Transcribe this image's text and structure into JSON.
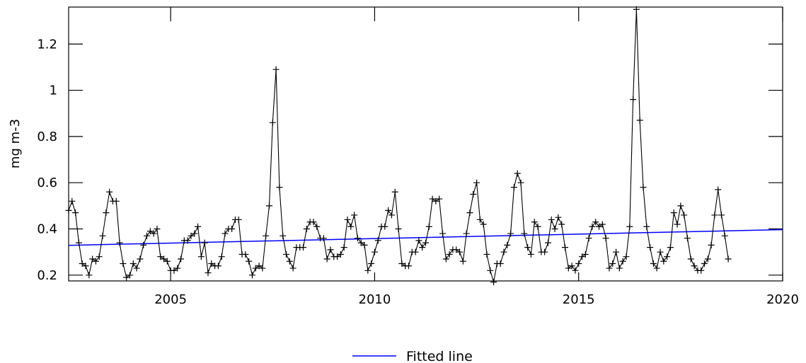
{
  "chart_data": {
    "type": "line",
    "title": "",
    "xlabel": "",
    "ylabel": "mg m-3",
    "xlim": [
      2002.5,
      2020
    ],
    "ylim": [
      0.175,
      1.36
    ],
    "x_ticks": [
      2005,
      2010,
      2015,
      2020
    ],
    "y_ticks": [
      0.2,
      0.4,
      0.6,
      0.8,
      1,
      1.2
    ],
    "x_tick_labels": [
      "2005",
      "2010",
      "2015",
      "2020"
    ],
    "y_tick_labels": [
      "0.2",
      "0.4",
      "0.6",
      "0.8",
      "1",
      "1.2"
    ],
    "grid": false,
    "legend": {
      "position": "bottom-center",
      "entries": [
        "Fitted line"
      ]
    },
    "series": [
      {
        "marker": "plus",
        "color": "#000000",
        "x_start": 2002.5,
        "x_step": 0.0833333,
        "values": [
          0.48,
          0.52,
          0.47,
          0.34,
          0.25,
          0.24,
          0.2,
          0.27,
          0.26,
          0.28,
          0.37,
          0.47,
          0.56,
          0.52,
          0.52,
          0.34,
          0.25,
          0.19,
          0.2,
          0.25,
          0.23,
          0.27,
          0.33,
          0.37,
          0.39,
          0.38,
          0.4,
          0.28,
          0.27,
          0.26,
          0.22,
          0.22,
          0.23,
          0.27,
          0.35,
          0.35,
          0.37,
          0.38,
          0.41,
          0.28,
          0.34,
          0.21,
          0.25,
          0.24,
          0.24,
          0.28,
          0.38,
          0.4,
          0.4,
          0.44,
          0.44,
          0.29,
          0.29,
          0.26,
          0.2,
          0.23,
          0.24,
          0.23,
          0.37,
          0.5,
          0.86,
          1.09,
          0.58,
          0.37,
          0.29,
          0.26,
          0.23,
          0.32,
          0.32,
          0.32,
          0.4,
          0.43,
          0.43,
          0.41,
          0.36,
          0.36,
          0.27,
          0.31,
          0.28,
          0.28,
          0.29,
          0.32,
          0.44,
          0.41,
          0.46,
          0.36,
          0.34,
          0.33,
          0.22,
          0.25,
          0.3,
          0.35,
          0.41,
          0.41,
          0.48,
          0.46,
          0.56,
          0.4,
          0.25,
          0.24,
          0.24,
          0.3,
          0.3,
          0.35,
          0.32,
          0.34,
          0.41,
          0.53,
          0.52,
          0.53,
          0.38,
          0.27,
          0.29,
          0.31,
          0.31,
          0.3,
          0.26,
          0.38,
          0.47,
          0.55,
          0.6,
          0.44,
          0.42,
          0.29,
          0.22,
          0.17,
          0.25,
          0.25,
          0.3,
          0.33,
          0.38,
          0.58,
          0.64,
          0.6,
          0.38,
          0.32,
          0.29,
          0.43,
          0.41,
          0.3,
          0.3,
          0.34,
          0.44,
          0.4,
          0.45,
          0.42,
          0.32,
          0.23,
          0.24,
          0.22,
          0.25,
          0.28,
          0.29,
          0.36,
          0.41,
          0.43,
          0.41,
          0.42,
          0.36,
          0.23,
          0.25,
          0.3,
          0.23,
          0.26,
          0.28,
          0.41,
          0.96,
          1.35,
          0.87,
          0.58,
          0.41,
          0.32,
          0.25,
          0.23,
          0.3,
          0.26,
          0.28,
          0.32,
          0.47,
          0.42,
          0.5,
          0.46,
          0.36,
          0.27,
          0.24,
          0.22,
          0.22,
          0.25,
          0.27,
          0.33,
          0.46,
          0.57,
          0.46,
          0.37,
          0.27
        ]
      },
      {
        "name": "Fitted line",
        "color": "#0000ff",
        "x": [
          2002.5,
          2020
        ],
        "values": [
          0.329,
          0.397
        ]
      }
    ]
  }
}
